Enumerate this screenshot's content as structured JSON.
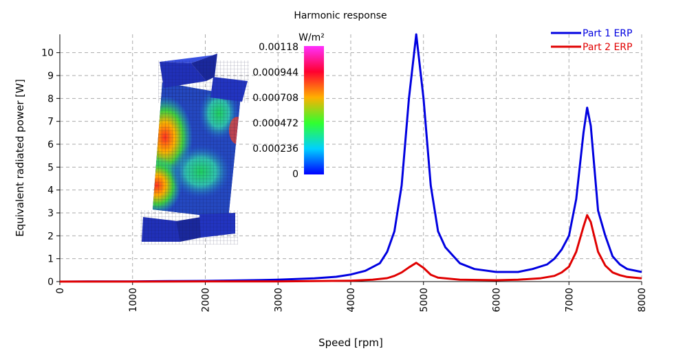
{
  "chart_data": {
    "type": "line",
    "title": "Harmonic response",
    "xlabel": "Speed [rpm]",
    "ylabel": "Equivalent radiated power [W]",
    "xlim": [
      0,
      8000
    ],
    "ylim": [
      0,
      10.8
    ],
    "xticks": [
      "0",
      "1000",
      "2000",
      "3000",
      "4000",
      "5000",
      "6000",
      "7000",
      "8000"
    ],
    "yticks": [
      "0",
      "1",
      "2",
      "3",
      "4",
      "5",
      "6",
      "7",
      "8",
      "9",
      "10"
    ],
    "grid": true,
    "legend_position": "top-right",
    "series": [
      {
        "name": "Part 1 ERP",
        "color": "#0000e0",
        "x": [
          0,
          500,
          1000,
          1500,
          2000,
          2500,
          3000,
          3500,
          3800,
          4000,
          4200,
          4400,
          4500,
          4600,
          4700,
          4800,
          4900,
          5000,
          5100,
          5200,
          5300,
          5500,
          5700,
          6000,
          6300,
          6500,
          6700,
          6800,
          6900,
          7000,
          7100,
          7200,
          7250,
          7300,
          7400,
          7500,
          7600,
          7700,
          7800,
          8000
        ],
        "y": [
          0,
          0.01,
          0.01,
          0.02,
          0.03,
          0.05,
          0.08,
          0.14,
          0.21,
          0.31,
          0.47,
          0.8,
          1.3,
          2.2,
          4.2,
          8.0,
          10.8,
          8.0,
          4.2,
          2.2,
          1.5,
          0.8,
          0.55,
          0.42,
          0.42,
          0.55,
          0.75,
          1.0,
          1.4,
          2.0,
          3.6,
          6.5,
          7.6,
          6.8,
          3.1,
          2.0,
          1.1,
          0.75,
          0.55,
          0.42
        ]
      },
      {
        "name": "Part 2 ERP",
        "color": "#e00000",
        "x": [
          0,
          1000,
          2000,
          3000,
          3500,
          4000,
          4300,
          4500,
          4600,
          4700,
          4800,
          4900,
          5000,
          5100,
          5200,
          5500,
          6000,
          6300,
          6600,
          6800,
          6900,
          7000,
          7100,
          7200,
          7250,
          7300,
          7400,
          7500,
          7600,
          7700,
          7800,
          8000
        ],
        "y": [
          0,
          0,
          0.01,
          0.01,
          0.02,
          0.04,
          0.08,
          0.15,
          0.25,
          0.4,
          0.62,
          0.82,
          0.6,
          0.3,
          0.17,
          0.08,
          0.06,
          0.08,
          0.14,
          0.25,
          0.4,
          0.65,
          1.3,
          2.4,
          2.9,
          2.6,
          1.3,
          0.7,
          0.4,
          0.28,
          0.2,
          0.14
        ]
      }
    ]
  },
  "colorbar": {
    "unit": "W/m²",
    "labels": [
      "0.00118",
      "0.000944",
      "0.000708",
      "0.000472",
      "0.000236",
      "0"
    ]
  }
}
